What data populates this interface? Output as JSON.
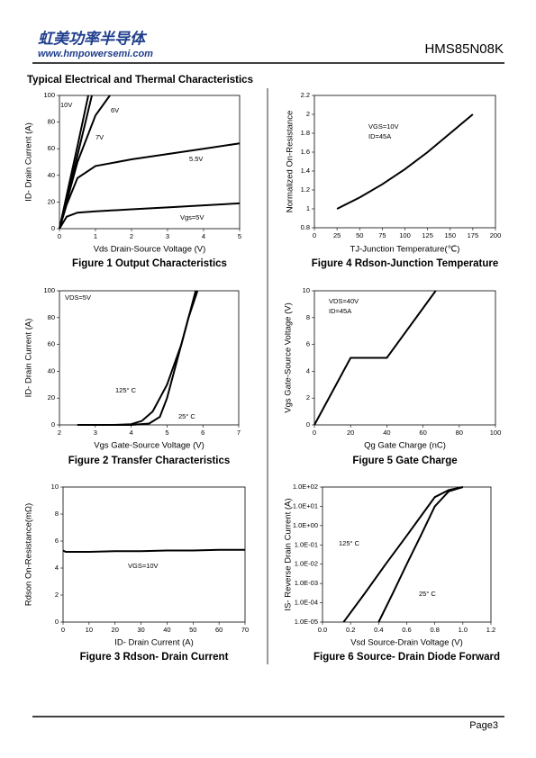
{
  "header": {
    "company": "虹美功率半导体",
    "website": "www.hmpowersemi.com",
    "part": "HMS85N08K"
  },
  "section_title": "Typical Electrical and Thermal Characteristics",
  "chart_data": [
    {
      "type": "line",
      "title": "Figure 1 Output Characteristics",
      "x_label": "Vds Drain-Source Voltage (V)",
      "y_label": "ID- Drain Current (A)",
      "xlim": [
        0,
        5
      ],
      "xticks": [
        0,
        1,
        2,
        3,
        4,
        5
      ],
      "ylim": [
        0,
        100
      ],
      "yticks": [
        0,
        20,
        40,
        60,
        80,
        100
      ],
      "series": [
        {
          "color": "#000000",
          "x": [
            0,
            0.2,
            0.5,
            0.8
          ],
          "values": [
            0,
            25,
            62,
            100
          ]
        },
        {
          "color": "#000000",
          "x": [
            0,
            0.2,
            0.5,
            0.9
          ],
          "values": [
            0,
            22,
            55,
            100
          ]
        },
        {
          "color": "#000000",
          "x": [
            0,
            0.2,
            0.5,
            1,
            1.4
          ],
          "values": [
            0,
            20,
            50,
            85,
            100
          ]
        },
        {
          "color": "#000000",
          "x": [
            0,
            0.2,
            0.5,
            1,
            2,
            3,
            4,
            5
          ],
          "values": [
            0,
            18,
            38,
            47,
            52,
            56,
            60,
            64
          ]
        },
        {
          "color": "#000000",
          "x": [
            0,
            0.2,
            0.5,
            1,
            2,
            3,
            4,
            5
          ],
          "values": [
            0,
            9,
            12,
            13,
            14.5,
            16,
            17.5,
            19
          ]
        }
      ],
      "annotations": [
        "10V",
        "6V",
        "7V",
        "5.5V",
        "Vgs=5V"
      ]
    },
    {
      "type": "line",
      "title": "Figure 4 Rdson-Junction Temperature",
      "x_label": "TJ-Junction Temperature(℃)",
      "y_label": "Normalized On-Resistance",
      "xlim": [
        0,
        200
      ],
      "xticks": [
        0,
        25,
        50,
        75,
        100,
        125,
        150,
        175,
        200
      ],
      "ylim": [
        0.8,
        2.2
      ],
      "yticks": [
        0.8,
        1,
        1.2,
        1.4,
        1.6,
        1.8,
        2,
        2.2
      ],
      "series": [
        {
          "color": "#000000",
          "x": [
            25,
            50,
            75,
            100,
            125,
            150,
            175
          ],
          "values": [
            1.0,
            1.12,
            1.26,
            1.42,
            1.6,
            1.8,
            2.0
          ]
        }
      ],
      "annotations": [
        "VGS=10V",
        "ID=45A"
      ]
    },
    {
      "type": "line",
      "title": "Figure 2 Transfer Characteristics",
      "x_label": "Vgs Gate-Source Voltage (V)",
      "y_label": "ID- Drain Current (A)",
      "xlim": [
        2,
        7
      ],
      "xticks": [
        2,
        3,
        4,
        5,
        6,
        7
      ],
      "ylim": [
        0,
        100
      ],
      "yticks": [
        0,
        20,
        40,
        60,
        80,
        100
      ],
      "series": [
        {
          "color": "#000000",
          "x": [
            2.5,
            3.5,
            4,
            4.3,
            4.6,
            5,
            5.4,
            5.8
          ],
          "values": [
            0,
            0,
            0.5,
            3,
            10,
            30,
            60,
            100
          ]
        },
        {
          "color": "#000000",
          "x": [
            2.5,
            4,
            4.5,
            4.8,
            5,
            5.3,
            5.6,
            5.85
          ],
          "values": [
            0,
            0,
            1,
            6,
            20,
            50,
            80,
            100
          ]
        }
      ],
      "annotations": [
        "VDS=5V",
        "125° C",
        "25° C"
      ]
    },
    {
      "type": "line",
      "title": "Figure 5 Gate Charge",
      "x_label": "Qg Gate Charge (nC)",
      "y_label": "Vgs Gate-Source Voltage (V)",
      "xlim": [
        0,
        100
      ],
      "xticks": [
        0,
        20,
        40,
        60,
        80,
        100
      ],
      "ylim": [
        0,
        10
      ],
      "yticks": [
        0,
        2,
        4,
        6,
        8,
        10
      ],
      "series": [
        {
          "color": "#000000",
          "x": [
            0,
            20,
            40,
            67
          ],
          "values": [
            0,
            5,
            5,
            10
          ]
        }
      ],
      "annotations": [
        "VDS=40V",
        "ID=45A"
      ]
    },
    {
      "type": "line",
      "title": "Figure 3 Rdson- Drain Current",
      "x_label": "ID- Drain Current (A)",
      "y_label": "Rdson On-Resistance(mΩ)",
      "xlim": [
        0,
        70
      ],
      "xticks": [
        0,
        10,
        20,
        30,
        40,
        50,
        60,
        70
      ],
      "ylim": [
        0,
        10
      ],
      "yticks": [
        0,
        2,
        4,
        6,
        8,
        10
      ],
      "series": [
        {
          "color": "#000000",
          "x": [
            0,
            1,
            10,
            20,
            30,
            40,
            50,
            60,
            70
          ],
          "values": [
            5.3,
            5.2,
            5.2,
            5.25,
            5.25,
            5.3,
            5.3,
            5.35,
            5.35
          ]
        }
      ],
      "annotations": [
        "VGS=10V"
      ]
    },
    {
      "type": "line",
      "title": "Figure 6 Source- Drain Diode Forward",
      "x_label": "Vsd Source-Drain Voltage (V)",
      "y_label": "IS- Reverse Drain Current (A)",
      "xlim": [
        0,
        1.2
      ],
      "xticks": [
        {
          "value": 0,
          "label": "0.0"
        },
        0.2,
        0.4,
        0.6,
        0.8,
        {
          "value": 1,
          "label": "1.0"
        },
        1.2
      ],
      "ylim": [
        1e-05,
        100
      ],
      "log_y": true,
      "yticks": [
        {
          "value": 1e-05,
          "label": "1.0E-05"
        },
        {
          "value": 0.0001,
          "label": "1.0E-04"
        },
        {
          "value": 0.001,
          "label": "1.0E-03"
        },
        {
          "value": 0.01,
          "label": "1.0E-02"
        },
        {
          "value": 0.1,
          "label": "1.0E-01"
        },
        {
          "value": 1,
          "label": "1.0E+00"
        },
        {
          "value": 10,
          "label": "1.0E+01"
        },
        {
          "value": 100,
          "label": "1.0E+02"
        }
      ],
      "series": [
        {
          "color": "#000000",
          "x": [
            0.15,
            0.3,
            0.45,
            0.6,
            0.7,
            0.8,
            0.9,
            1.0
          ],
          "values": [
            1e-05,
            0.0003,
            0.01,
            0.3,
            3,
            30,
            70,
            100
          ]
        },
        {
          "color": "#000000",
          "x": [
            0.4,
            0.5,
            0.6,
            0.7,
            0.8,
            0.9,
            1.0
          ],
          "values": [
            1e-05,
            0.0003,
            0.01,
            0.3,
            10,
            60,
            100
          ]
        }
      ],
      "annotations": [
        "125° C",
        "25° C"
      ]
    }
  ],
  "footer": {
    "page": "Page3"
  }
}
